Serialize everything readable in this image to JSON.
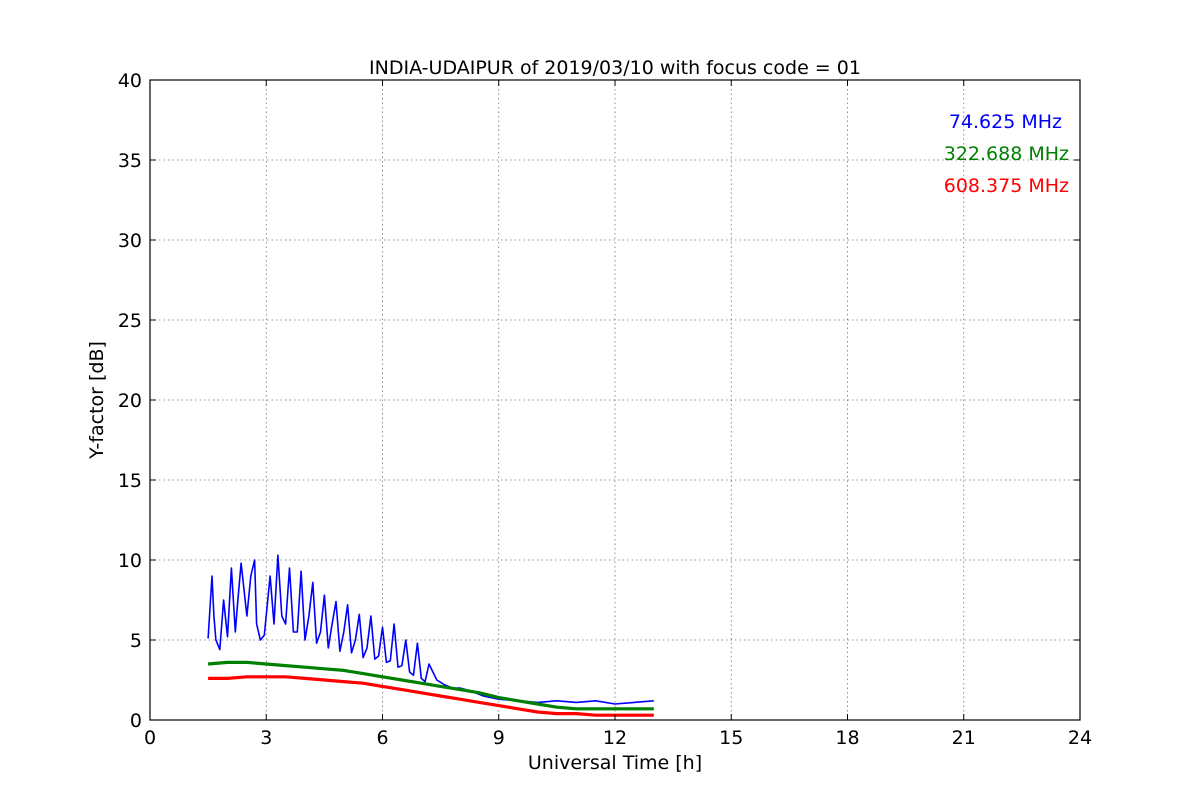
{
  "chart_data": {
    "type": "line",
    "title": "INDIA-UDAIPUR of 2019/03/10 with focus code = 01",
    "xlabel": "Universal Time [h]",
    "ylabel": "Y-factor [dB]",
    "xlim": [
      0,
      24
    ],
    "ylim": [
      0,
      40
    ],
    "xticks": [
      0,
      3,
      6,
      9,
      12,
      15,
      18,
      21,
      24
    ],
    "yticks": [
      0,
      5,
      10,
      15,
      20,
      25,
      30,
      35,
      40
    ],
    "grid": true,
    "legend_placement": "top-right",
    "series": [
      {
        "name": "74.625 MHz",
        "color": "#0000ff",
        "x": [
          1.5,
          1.6,
          1.65,
          1.7,
          1.8,
          1.9,
          2.0,
          2.1,
          2.2,
          2.25,
          2.35,
          2.5,
          2.6,
          2.7,
          2.75,
          2.85,
          2.95,
          3.1,
          3.2,
          3.3,
          3.4,
          3.5,
          3.6,
          3.7,
          3.8,
          3.9,
          4.0,
          4.1,
          4.2,
          4.3,
          4.4,
          4.5,
          4.6,
          4.7,
          4.8,
          4.9,
          5.0,
          5.1,
          5.2,
          5.3,
          5.4,
          5.5,
          5.6,
          5.7,
          5.8,
          5.9,
          6.0,
          6.1,
          6.2,
          6.3,
          6.4,
          6.5,
          6.6,
          6.7,
          6.8,
          6.9,
          7.0,
          7.1,
          7.2,
          7.4,
          7.6,
          7.8,
          8.0,
          8.3,
          8.6,
          9.0,
          9.5,
          10.0,
          10.5,
          11.0,
          11.5,
          12.0,
          12.5,
          13.0
        ],
        "y": [
          5.1,
          9.0,
          6.5,
          5.0,
          4.4,
          7.5,
          5.2,
          9.5,
          5.5,
          7.0,
          9.8,
          6.5,
          9.0,
          10.0,
          6.0,
          5.0,
          5.3,
          9.0,
          6.0,
          10.3,
          6.5,
          6.0,
          9.5,
          5.5,
          5.5,
          9.3,
          5.0,
          6.5,
          8.6,
          4.8,
          5.5,
          7.8,
          4.5,
          6.0,
          7.4,
          4.3,
          5.5,
          7.2,
          4.2,
          5.0,
          6.6,
          3.9,
          4.5,
          6.5,
          3.8,
          4.0,
          5.8,
          3.6,
          3.7,
          6.0,
          3.3,
          3.4,
          5.0,
          3.0,
          2.8,
          4.8,
          2.6,
          2.4,
          3.5,
          2.5,
          2.2,
          2.0,
          2.0,
          1.8,
          1.5,
          1.3,
          1.2,
          1.1,
          1.2,
          1.1,
          1.2,
          1.0,
          1.1,
          1.2
        ]
      },
      {
        "name": "322.688 MHz",
        "color": "#008000",
        "x": [
          1.5,
          2.0,
          2.5,
          3.0,
          3.5,
          4.0,
          4.5,
          5.0,
          5.5,
          6.0,
          6.5,
          7.0,
          7.5,
          8.0,
          8.5,
          9.0,
          9.5,
          10.0,
          10.5,
          11.0,
          11.5,
          12.0,
          12.5,
          13.0
        ],
        "y": [
          3.5,
          3.6,
          3.6,
          3.5,
          3.4,
          3.3,
          3.2,
          3.1,
          2.9,
          2.7,
          2.5,
          2.3,
          2.1,
          1.9,
          1.7,
          1.4,
          1.2,
          1.0,
          0.8,
          0.7,
          0.7,
          0.7,
          0.7,
          0.7
        ]
      },
      {
        "name": "608.375 MHz",
        "color": "#ff0000",
        "x": [
          1.5,
          2.0,
          2.5,
          3.0,
          3.5,
          4.0,
          4.5,
          5.0,
          5.5,
          6.0,
          6.5,
          7.0,
          7.5,
          8.0,
          8.5,
          9.0,
          9.5,
          10.0,
          10.5,
          11.0,
          11.5,
          12.0,
          12.5,
          13.0
        ],
        "y": [
          2.6,
          2.6,
          2.7,
          2.7,
          2.7,
          2.6,
          2.5,
          2.4,
          2.3,
          2.1,
          1.9,
          1.7,
          1.5,
          1.3,
          1.1,
          0.9,
          0.7,
          0.5,
          0.4,
          0.4,
          0.3,
          0.3,
          0.3,
          0.3
        ]
      }
    ]
  }
}
